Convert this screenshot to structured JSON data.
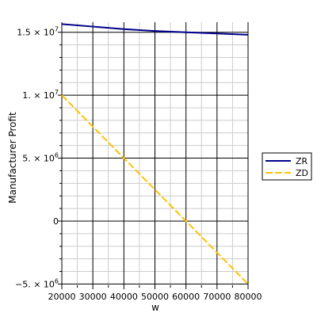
{
  "chart_data": {
    "type": "line",
    "title": "",
    "xlabel": "w",
    "ylabel": "Manufacturer Profit",
    "xlim": [
      20000,
      80000
    ],
    "ylim": [
      -5100000,
      15800000
    ],
    "x_ticks": [
      {
        "value": 20000,
        "label": "20000"
      },
      {
        "value": 30000,
        "label": "30000"
      },
      {
        "value": 40000,
        "label": "40000"
      },
      {
        "value": 50000,
        "label": "50000"
      },
      {
        "value": 60000,
        "label": "60000"
      },
      {
        "value": 70000,
        "label": "70000"
      },
      {
        "value": 80000,
        "label": "80000"
      }
    ],
    "y_ticks": [
      {
        "value": -5000000,
        "mantissa": "−5. × 10",
        "exp": "6"
      },
      {
        "value": 0,
        "mantissa": "0",
        "exp": ""
      },
      {
        "value": 5000000,
        "mantissa": "5. × 10",
        "exp": "6"
      },
      {
        "value": 10000000,
        "mantissa": "1. × 10",
        "exp": "7"
      },
      {
        "value": 15000000,
        "mantissa": "1.5 × 10",
        "exp": "7"
      }
    ],
    "grid": true,
    "legend_position": "right",
    "series": [
      {
        "name": "ZR",
        "color": "#00008b",
        "dash": "solid",
        "x": [
          20000,
          30000,
          40000,
          50000,
          60000,
          70000,
          80000
        ],
        "y": [
          15650000,
          15450000,
          15250000,
          15100000,
          15000000,
          14900000,
          14800000
        ]
      },
      {
        "name": "ZD",
        "color": "#ffc200",
        "dash": "dashed",
        "x": [
          20000,
          30000,
          40000,
          50000,
          60000,
          70000,
          80000
        ],
        "y": [
          10000000,
          7500000,
          5000000,
          2500000,
          0,
          -2500000,
          -5000000
        ]
      }
    ]
  }
}
